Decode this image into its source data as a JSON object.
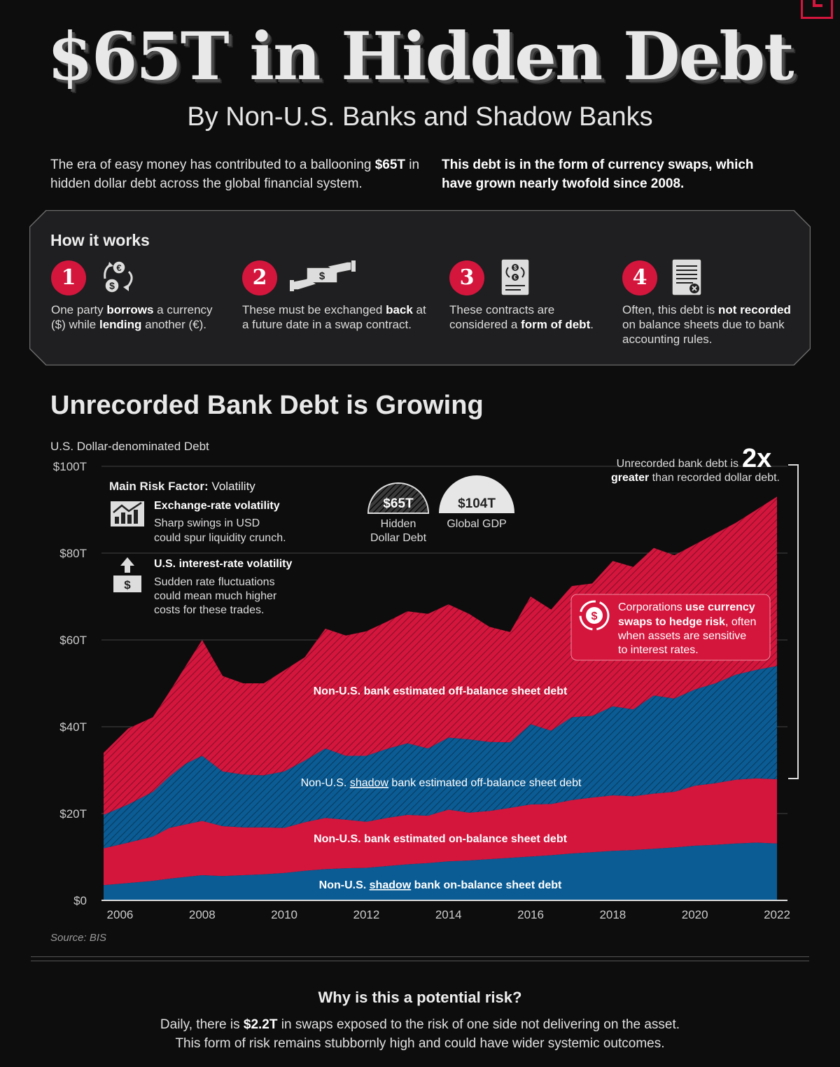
{
  "title": "$65T in Hidden Debt",
  "subtitle": "By Non-U.S. Banks and Shadow Banks",
  "intro_left": {
    "pre": "The era of easy money has contributed to a ballooning ",
    "bold": "$65T",
    "post": " in hidden dollar debt across the global financial system."
  },
  "intro_right": "This debt is in the form of currency swaps, which have grown nearly twofold since 2008.",
  "how_it_works": {
    "heading": "How it works",
    "steps": [
      {
        "num": "1",
        "icon": "currency-exchange-icon",
        "parts": [
          [
            "One party ",
            false
          ],
          [
            "borrows",
            true
          ],
          [
            " a currency ($) while ",
            false
          ],
          [
            "lending",
            true
          ],
          [
            " another (€).",
            false
          ]
        ]
      },
      {
        "num": "2",
        "icon": "handshake-money-icon",
        "parts": [
          [
            "These must be exchanged ",
            false
          ],
          [
            "back",
            true
          ],
          [
            " at a future date in a swap contract.",
            false
          ]
        ]
      },
      {
        "num": "3",
        "icon": "contract-document-icon",
        "parts": [
          [
            "These contracts are considered a ",
            false
          ],
          [
            "form of debt",
            true
          ],
          [
            ".",
            false
          ]
        ]
      },
      {
        "num": "4",
        "icon": "unrecorded-sheet-icon",
        "parts": [
          [
            "Often, this debt is ",
            false
          ],
          [
            "not recorded",
            true
          ],
          [
            " on balance sheets due to bank accounting rules.",
            false
          ]
        ]
      }
    ]
  },
  "chart_section_title": "Unrecorded Bank Debt is Growing",
  "y_axis_title": "U.S. Dollar-denominated Debt",
  "source": "Source: BIS",
  "annotations": {
    "risk_factor_label": "Main Risk Factor:",
    "risk_factor_value": " Volatility",
    "risk1_title": "Exchange-rate volatility",
    "risk1_text": [
      "Sharp swings in USD",
      "could spur liquidity crunch."
    ],
    "risk2_title": "U.S. interest-rate volatility",
    "risk2_text": [
      "Sudden rate fluctuations",
      "could mean much higher",
      "costs for these trades."
    ],
    "hidden_value": "$65T",
    "hidden_label": [
      "Hidden",
      "Dollar Debt"
    ],
    "gdp_value": "$104T",
    "gdp_label": "Global GDP",
    "twox_pre": "Unrecorded bank debt is ",
    "twox_big": "2x",
    "twox_bold": "greater",
    "twox_post": " than recorded dollar debt.",
    "corp_parts": [
      [
        "Corporations ",
        false
      ],
      [
        "use currency",
        true
      ]
    ],
    "corp_line2": [
      [
        "swaps to hedge risk",
        true
      ],
      [
        ", often",
        false
      ]
    ],
    "corp_line3": "when assets are sensitive",
    "corp_line4": "to interest rates."
  },
  "chart_data": {
    "type": "area",
    "stacked": true,
    "x": [
      2005.6,
      2006.2,
      2006.8,
      2007.2,
      2007.6,
      2008.0,
      2008.5,
      2009.0,
      2009.5,
      2010.0,
      2010.5,
      2011.0,
      2011.5,
      2012.0,
      2012.5,
      2013.0,
      2013.5,
      2014.0,
      2014.5,
      2015.0,
      2015.5,
      2016.0,
      2016.5,
      2017.0,
      2017.5,
      2018.0,
      2018.5,
      2019.0,
      2019.5,
      2020.0,
      2020.5,
      2021.0,
      2021.5,
      2022.0
    ],
    "series": [
      {
        "name": "Non-U.S. shadow bank on-balance sheet debt",
        "color": "#0b5c94",
        "pattern": false,
        "values": [
          3.5,
          4.0,
          4.5,
          5.0,
          5.4,
          5.8,
          5.6,
          5.8,
          6.0,
          6.3,
          6.8,
          7.2,
          7.4,
          7.5,
          7.9,
          8.3,
          8.6,
          9.0,
          9.2,
          9.5,
          9.8,
          10.1,
          10.4,
          10.8,
          11.1,
          11.4,
          11.6,
          11.9,
          12.2,
          12.6,
          12.8,
          13.1,
          13.3,
          13.1
        ]
      },
      {
        "name": "Non-U.S. bank estimated on-balance sheet debt",
        "color": "#d4163d",
        "pattern": false,
        "values": [
          8.5,
          9.3,
          10.2,
          11.7,
          12.1,
          12.5,
          11.5,
          11.0,
          10.8,
          10.4,
          11.2,
          11.8,
          11.2,
          10.6,
          11.1,
          11.4,
          10.9,
          11.9,
          11.0,
          11.1,
          11.5,
          12.0,
          11.8,
          12.3,
          12.6,
          12.8,
          12.4,
          12.7,
          12.8,
          13.8,
          14.2,
          14.7,
          14.8,
          14.8
        ]
      },
      {
        "name": "Non-U.S. shadow bank estimated off-balance sheet debt",
        "color": "#0b5c94",
        "pattern": true,
        "values": [
          7.7,
          8.8,
          10.3,
          11.8,
          14.0,
          15.0,
          12.6,
          12.2,
          12.0,
          13.0,
          14.2,
          16.0,
          14.7,
          15.2,
          15.9,
          16.5,
          15.5,
          16.6,
          16.9,
          15.9,
          15.1,
          18.5,
          16.9,
          19.1,
          18.8,
          20.5,
          20.0,
          22.6,
          21.5,
          22.2,
          23.0,
          24.2,
          25.0,
          26.1
        ]
      },
      {
        "name": "Non-U.S. bank estimated off-balance sheet debt",
        "color": "#d4163d",
        "pattern": true,
        "values": [
          14.3,
          17.5,
          17.2,
          19.5,
          22.5,
          26.7,
          22.0,
          21.0,
          21.2,
          23.3,
          23.8,
          27.6,
          27.7,
          28.7,
          29.3,
          30.4,
          31.0,
          30.7,
          28.9,
          26.5,
          25.4,
          29.4,
          27.9,
          30.2,
          30.5,
          33.5,
          32.8,
          34.0,
          33.0,
          33.4,
          34.5,
          35.0,
          36.9,
          39.0
        ]
      }
    ],
    "ylim": [
      0,
      100
    ],
    "yticks": [
      "$0",
      "$20T",
      "$40T",
      "$60T",
      "$80T",
      "$100T"
    ],
    "xticks": [
      "2006",
      "2008",
      "2010",
      "2012",
      "2014",
      "2016",
      "2018",
      "2020",
      "2022"
    ],
    "series_labels": {
      "s0": {
        "pre": "Non-U.S. ",
        "u": "shadow",
        "post": " bank on-balance sheet debt"
      },
      "s1": "Non-U.S. bank estimated on-balance sheet debt",
      "s2": {
        "pre": "Non-U.S. ",
        "u": "shadow",
        "post": " bank estimated off-balance sheet debt"
      },
      "s3": "Non-U.S. bank estimated off-balance sheet debt"
    }
  },
  "risk_section": {
    "title": "Why is this a potential risk?",
    "pre": "Daily, there is ",
    "bold": "$2.2T",
    "post": " in swaps exposed to the risk of one side not delivering on the asset.",
    "line2": "This form of risk remains stubbornly high and could have wider systemic outcomes."
  }
}
